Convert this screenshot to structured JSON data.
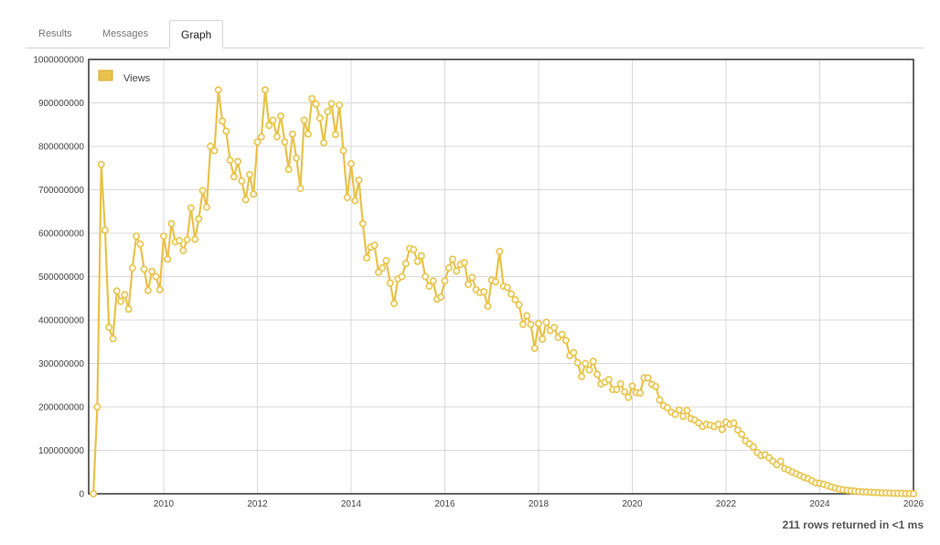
{
  "tabs": [
    {
      "label": "Results",
      "active": false
    },
    {
      "label": "Messages",
      "active": false
    },
    {
      "label": "Graph",
      "active": true
    }
  ],
  "footer": {
    "status": "211 rows returned in <1 ms"
  },
  "colors": {
    "series": "#e8c24a",
    "grid": "#d9d9d9",
    "frame": "#333333"
  },
  "chart_data": {
    "type": "line",
    "title": "",
    "xlabel": "",
    "ylabel": "",
    "xlim": [
      2008.4,
      2026.0
    ],
    "ylim": [
      0,
      1000000000
    ],
    "x_ticks": [
      "2010",
      "2012",
      "2014",
      "2016",
      "2018",
      "2020",
      "2022",
      "2024",
      "2026"
    ],
    "y_ticks": [
      "0",
      "100000000",
      "200000000",
      "300000000",
      "400000000",
      "500000000",
      "600000000",
      "700000000",
      "800000000",
      "900000000",
      "1000000000"
    ],
    "grid": true,
    "legend": {
      "position": "top-left"
    },
    "series": [
      {
        "name": "Views",
        "x_start": "2008-07",
        "interval": "1 month",
        "values": [
          0,
          200000000,
          758000000,
          607000000,
          383000000,
          357000000,
          467000000,
          443000000,
          458000000,
          425000000,
          520000000,
          593000000,
          575000000,
          517000000,
          468000000,
          512000000,
          500000000,
          470000000,
          593000000,
          540000000,
          622000000,
          580000000,
          583000000,
          560000000,
          585000000,
          658000000,
          586000000,
          633000000,
          698000000,
          660000000,
          800000000,
          790000000,
          930000000,
          858000000,
          835000000,
          768000000,
          730000000,
          765000000,
          720000000,
          677000000,
          735000000,
          690000000,
          810000000,
          822000000,
          930000000,
          848000000,
          860000000,
          822000000,
          870000000,
          810000000,
          747000000,
          828000000,
          773000000,
          703000000,
          860000000,
          828000000,
          910000000,
          897000000,
          865000000,
          808000000,
          880000000,
          898000000,
          827000000,
          895000000,
          790000000,
          682000000,
          760000000,
          675000000,
          722000000,
          622000000,
          543000000,
          568000000,
          572000000,
          510000000,
          520000000,
          537000000,
          485000000,
          438000000,
          495000000,
          500000000,
          530000000,
          565000000,
          562000000,
          535000000,
          548000000,
          500000000,
          478000000,
          490000000,
          448000000,
          453000000,
          490000000,
          520000000,
          540000000,
          513000000,
          528000000,
          532000000,
          482000000,
          498000000,
          470000000,
          463000000,
          465000000,
          432000000,
          492000000,
          488000000,
          558000000,
          478000000,
          475000000,
          460000000,
          447000000,
          435000000,
          390000000,
          410000000,
          390000000,
          335000000,
          392000000,
          356000000,
          395000000,
          376000000,
          383000000,
          360000000,
          367000000,
          353000000,
          318000000,
          325000000,
          302000000,
          270000000,
          300000000,
          285000000,
          305000000,
          275000000,
          253000000,
          257000000,
          263000000,
          240000000,
          240000000,
          253000000,
          235000000,
          222000000,
          248000000,
          233000000,
          232000000,
          267000000,
          267000000,
          252000000,
          247000000,
          216000000,
          203000000,
          198000000,
          188000000,
          183000000,
          193000000,
          178000000,
          192000000,
          173000000,
          170000000,
          163000000,
          155000000,
          160000000,
          158000000,
          155000000,
          160000000,
          148000000,
          165000000,
          160000000,
          163000000,
          147000000,
          137000000,
          122000000,
          115000000,
          108000000,
          95000000,
          88000000,
          90000000,
          83000000,
          75000000,
          67000000,
          75000000,
          58000000,
          55000000,
          50000000,
          46000000,
          42000000,
          38000000,
          35000000,
          30000000,
          25000000,
          24000000,
          22000000,
          19000000,
          16000000,
          13000000,
          11000000,
          9000000,
          8000000,
          7000000,
          6000000,
          5000000,
          4500000,
          4000000,
          3500000,
          3000000,
          2500000,
          2200000,
          1900000,
          1600000,
          1300000,
          1000000,
          800000,
          600000,
          400000,
          200000
        ]
      }
    ]
  }
}
